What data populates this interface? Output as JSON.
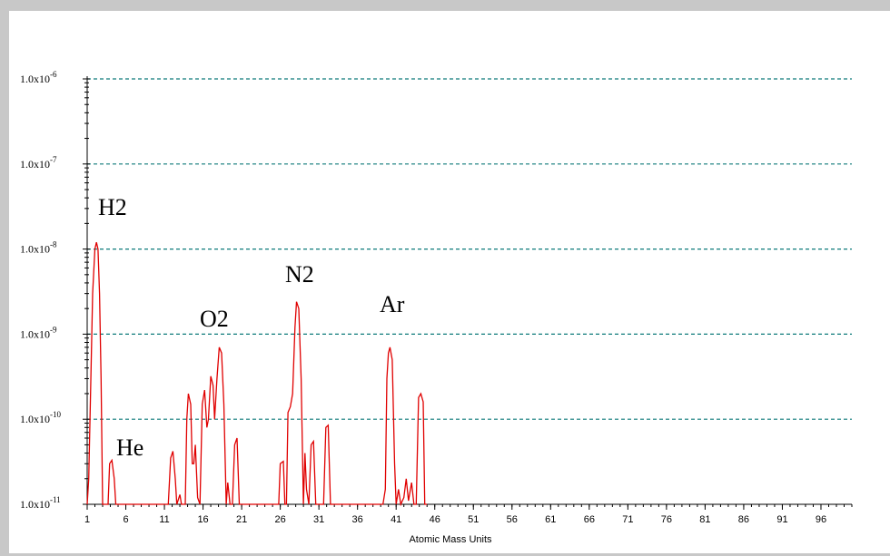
{
  "chart_data": {
    "type": "line",
    "log_y": true,
    "grid": true,
    "grid_color": "#0e7a7a",
    "xlabel": "Atomic Mass Units",
    "xlim": [
      1,
      100
    ],
    "xticks": [
      1,
      6,
      11,
      16,
      21,
      26,
      31,
      36,
      41,
      46,
      51,
      56,
      61,
      66,
      71,
      76,
      81,
      86,
      91,
      96
    ],
    "ylim": [
      1e-11,
      1e-06
    ],
    "yticks": [
      {
        "value": 1e-11,
        "label": "1.0x10-11"
      },
      {
        "value": 1e-10,
        "label": "1.0x10-10"
      },
      {
        "value": 1e-09,
        "label": "1.0x10-9"
      },
      {
        "value": 1e-08,
        "label": "1.0x10-8"
      },
      {
        "value": 1e-07,
        "label": "1.0x10-7"
      },
      {
        "value": 1e-06,
        "label": "1.0x10-6"
      }
    ],
    "annotations": [
      "H2",
      "He",
      "O2",
      "N2",
      "Ar"
    ],
    "series": [
      {
        "color": "#e00000",
        "x": [
          1.0,
          1.2,
          1.5,
          1.7,
          2.0,
          2.2,
          2.4,
          2.6,
          2.8,
          3.0,
          3.7,
          3.9,
          4.2,
          4.5,
          4.7,
          11.5,
          11.8,
          12.1,
          12.4,
          12.6,
          13.0,
          13.2,
          13.7,
          13.9,
          14.1,
          14.4,
          14.6,
          14.8,
          15.0,
          15.3,
          15.6,
          15.9,
          16.2,
          16.5,
          16.7,
          17.0,
          17.3,
          17.5,
          17.8,
          18.1,
          18.4,
          18.7,
          19.0,
          19.2,
          19.5,
          19.8,
          20.1,
          20.4,
          20.7,
          25.8,
          26.0,
          26.4,
          26.6,
          26.8,
          27.0,
          27.3,
          27.6,
          27.9,
          28.1,
          28.4,
          28.7,
          29.0,
          29.2,
          29.4,
          29.7,
          30.0,
          30.3,
          30.6,
          31.6,
          31.9,
          32.2,
          32.5,
          39.3,
          39.6,
          39.8,
          40.0,
          40.2,
          40.5,
          40.8,
          41.0,
          41.3,
          41.6,
          42.0,
          42.3,
          42.6,
          43.0,
          43.3,
          43.6,
          43.9,
          44.2,
          44.5,
          44.7,
          45.0
        ],
        "values": [
          1e-11,
          2e-11,
          4e-10,
          3e-09,
          1e-08,
          1.2e-08,
          1e-08,
          3e-09,
          3e-10,
          1e-11,
          1e-11,
          3e-11,
          3.3e-11,
          2e-11,
          1e-11,
          1e-11,
          3.5e-11,
          4.2e-11,
          2e-11,
          1e-11,
          1.3e-11,
          1e-11,
          1e-11,
          1e-10,
          2e-10,
          1.5e-10,
          3e-11,
          3e-11,
          5e-11,
          1.2e-11,
          1e-11,
          1.5e-10,
          2.2e-10,
          8e-11,
          1e-10,
          3.2e-10,
          2.5e-10,
          1e-10,
          3e-10,
          7e-10,
          6e-10,
          1.5e-10,
          1e-11,
          1.8e-11,
          1e-11,
          1e-11,
          5e-11,
          6e-11,
          1e-11,
          1e-11,
          3e-11,
          3.2e-11,
          1e-11,
          1e-11,
          1.2e-10,
          1.4e-10,
          2e-10,
          1.2e-09,
          2.4e-09,
          2e-09,
          3e-10,
          1e-11,
          4e-11,
          1.5e-11,
          1e-11,
          5e-11,
          5.5e-11,
          1e-11,
          1e-11,
          8e-11,
          8.5e-11,
          1e-11,
          1e-11,
          1.5e-11,
          3e-10,
          6e-10,
          7e-10,
          5e-10,
          3e-11,
          1e-11,
          1.5e-11,
          1e-11,
          1.2e-11,
          2e-11,
          1.1e-11,
          1.8e-11,
          1e-11,
          1e-11,
          1.8e-10,
          2e-10,
          1.6e-10,
          1e-11,
          1e-11
        ]
      }
    ]
  }
}
